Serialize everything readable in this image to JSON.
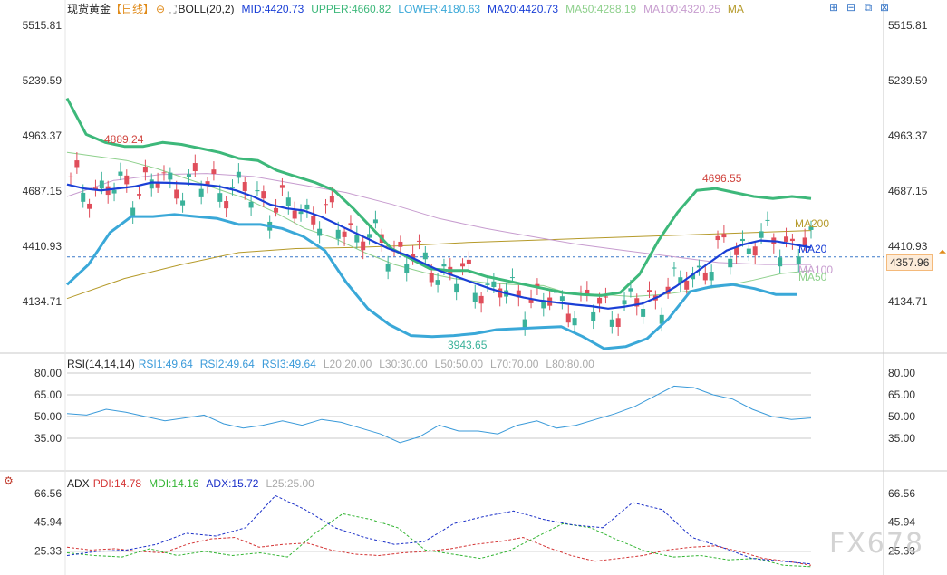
{
  "header": {
    "symbol": "现货黄金",
    "period": "【日线】",
    "indicator": "BOLL(20,2)",
    "mid": "MID:4420.73",
    "upper": "UPPER:4660.82",
    "lower": "LOWER:4180.63",
    "ma20": "MA20:4420.73",
    "ma50": "MA50:4288.19",
    "ma100": "MA100:4320.25",
    "ma": "MA"
  },
  "toolbar": {
    "add_icon": "add-panel-icon",
    "minimize_icon": "minimize-icon",
    "restore_icon": "restore-icon",
    "close_icon": "close-icon"
  },
  "price_axis": {
    "ticks": [
      "5515.81",
      "5239.59",
      "4963.37",
      "4687.15",
      "4410.93",
      "4134.71"
    ]
  },
  "current_price": "4357.96",
  "annotations": {
    "high1": "4889.24",
    "high2": "4696.55",
    "low1": "3943.65",
    "ma200_label": "MA200",
    "ma20_label": "MA20",
    "ma100_label": "MA100",
    "ma50_label": "MA50"
  },
  "rsi": {
    "title": "RSI(14,14,14)",
    "rsi1": "RSI1:49.64",
    "rsi2": "RSI2:49.64",
    "rsi3": "RSI3:49.64",
    "l20": "L20:20.00",
    "l30": "L30:30.00",
    "l50": "L50:50.00",
    "l70": "L70:70.00",
    "l80": "L80:80.00",
    "ticks": [
      "80.00",
      "65.00",
      "50.00",
      "35.00"
    ]
  },
  "adx": {
    "title": "ADX",
    "pdi": "PDI:14.78",
    "mdi": "MDI:14.16",
    "adx": "ADX:15.72",
    "l25": "L25:25.00",
    "ticks": [
      "66.56",
      "45.94",
      "25.33"
    ]
  },
  "watermark": "FX678",
  "colors": {
    "up": "#e04e5b",
    "down": "#3bb29a",
    "boll_upper": "#3db87a",
    "boll_lower": "#3aa8d8",
    "ma20": "#1a3fd6",
    "ma50": "#8ed08c",
    "ma100": "#c79ccf",
    "ma200": "#b59a2a",
    "rsi": "#3a9ad9",
    "pdi": "#d43535",
    "mdi": "#33b533",
    "adx": "#1a2fc8"
  },
  "chart_data": {
    "type": "candlestick",
    "price_range": [
      3900,
      5560
    ],
    "ma20": [
      4720,
      4700,
      4690,
      4700,
      4710,
      4730,
      4728,
      4725,
      4720,
      4710,
      4690,
      4660,
      4620,
      4600,
      4590,
      4560,
      4520,
      4480,
      4440,
      4400,
      4370,
      4330,
      4290,
      4260,
      4230,
      4200,
      4175,
      4155,
      4140,
      4130,
      4120,
      4112,
      4100,
      4110,
      4125,
      4160,
      4210,
      4270,
      4330,
      4390,
      4420,
      4440,
      4435,
      4420,
      4405
    ],
    "boll_upper": [
      5150,
      4970,
      4930,
      4910,
      4910,
      4930,
      4920,
      4900,
      4880,
      4850,
      4840,
      4790,
      4760,
      4730,
      4690,
      4600,
      4500,
      4400,
      4350,
      4300,
      4290,
      4290,
      4260,
      4240,
      4220,
      4200,
      4180,
      4170,
      4165,
      4180,
      4270,
      4440,
      4580,
      4690,
      4700,
      4680,
      4660,
      4650,
      4660,
      4650
    ],
    "boll_lower": [
      4220,
      4320,
      4480,
      4560,
      4560,
      4570,
      4560,
      4550,
      4520,
      4520,
      4500,
      4460,
      4390,
      4230,
      4100,
      4020,
      3965,
      3960,
      3965,
      3975,
      3995,
      4000,
      4005,
      4010,
      3960,
      3900,
      3910,
      3950,
      4050,
      4185,
      4210,
      4220,
      4200,
      4170,
      4170
    ],
    "ma50": [
      4880,
      4860,
      4840,
      4800,
      4750,
      4700,
      4650,
      4580,
      4500,
      4450,
      4380,
      4320,
      4280,
      4250,
      4230,
      4220,
      4215,
      4170,
      4170,
      4160,
      4170,
      4190,
      4210,
      4240,
      4275,
      4290
    ],
    "ma100": [
      4660,
      4740,
      4770,
      4775,
      4760,
      4720,
      4680,
      4620,
      4550,
      4500,
      4460,
      4420,
      4390,
      4360,
      4330,
      4320,
      4320
    ],
    "ma200": [
      4150,
      4250,
      4320,
      4380,
      4400,
      4405,
      4415,
      4430,
      4440,
      4450,
      4460,
      4470,
      4480,
      4490
    ],
    "rsi1": [
      52,
      51,
      55,
      53,
      50,
      47,
      49,
      51,
      45,
      42,
      44,
      47,
      44,
      48,
      46,
      42,
      38,
      32,
      36,
      44,
      40,
      40,
      38,
      44,
      47,
      42,
      44,
      48,
      52,
      57,
      64,
      71,
      70,
      65,
      62,
      55,
      50,
      48,
      49
    ],
    "pdi": [
      28,
      26,
      27,
      25,
      24,
      30,
      34,
      35,
      28,
      30,
      31,
      26,
      23,
      22,
      24,
      25,
      27,
      30,
      32,
      35,
      28,
      22,
      18,
      20,
      22,
      26,
      28,
      29,
      25,
      20,
      18,
      15
    ],
    "mdi": [
      24,
      22,
      21,
      27,
      22,
      25,
      22,
      24,
      21,
      38,
      52,
      48,
      42,
      26,
      23,
      20,
      25,
      35,
      45,
      42,
      33,
      25,
      21,
      22,
      19,
      20,
      15,
      14
    ],
    "adx": [
      22,
      25,
      26,
      30,
      38,
      36,
      42,
      65,
      55,
      42,
      35,
      30,
      32,
      45,
      50,
      54,
      48,
      44,
      42,
      60,
      55,
      35,
      28,
      20,
      18,
      16
    ]
  }
}
